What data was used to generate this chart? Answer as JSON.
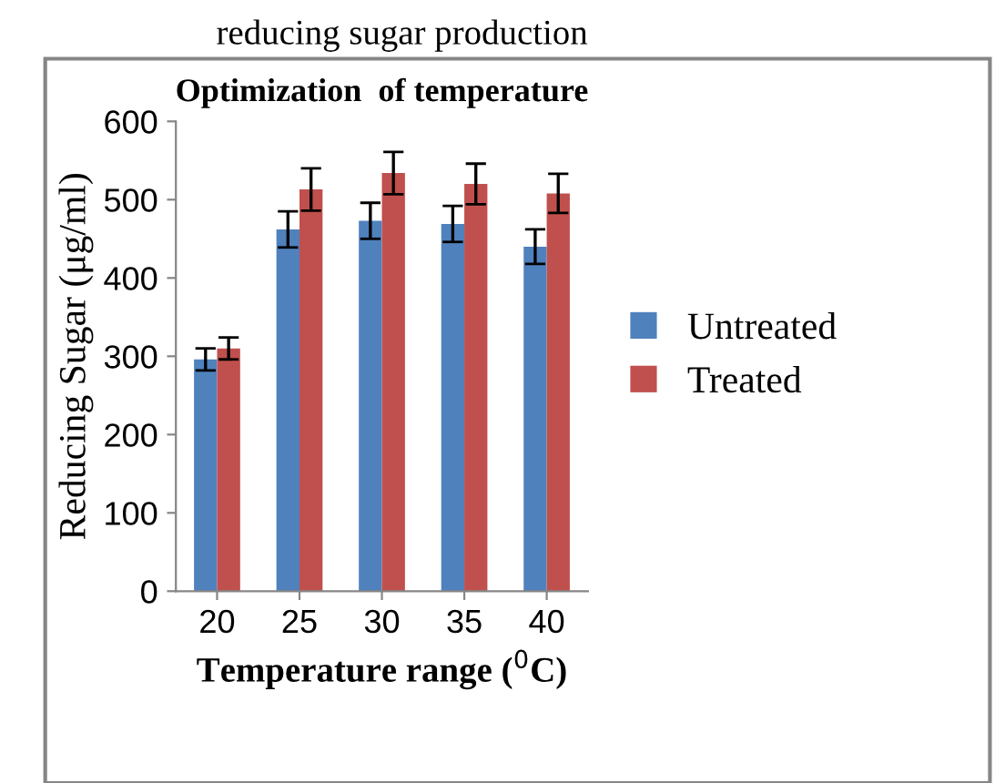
{
  "chart_data": {
    "type": "bar",
    "title": "Optimization  of temperature",
    "xlabel": "Temperature range ($^{0}$C)",
    "ylabel": "Reducing Sugar (μg/ml)",
    "annotations": [
      "reducing sugar production"
    ],
    "categories": [
      "20",
      "25",
      "30",
      "35",
      "40"
    ],
    "series": [
      {
        "name": "Untreated",
        "color": "#4f81bd",
        "values": [
          296,
          462,
          473,
          469,
          440
        ],
        "errors": [
          14,
          23,
          23,
          23,
          22
        ]
      },
      {
        "name": "Treated",
        "color": "#c0504d",
        "values": [
          310,
          513,
          534,
          520,
          508
        ],
        "errors": [
          14,
          27,
          27,
          26,
          25
        ]
      }
    ],
    "ylim": [
      0,
      600
    ],
    "yticks": [
      0,
      100,
      200,
      300,
      400,
      500,
      600
    ],
    "grid": false,
    "legend": "right"
  }
}
